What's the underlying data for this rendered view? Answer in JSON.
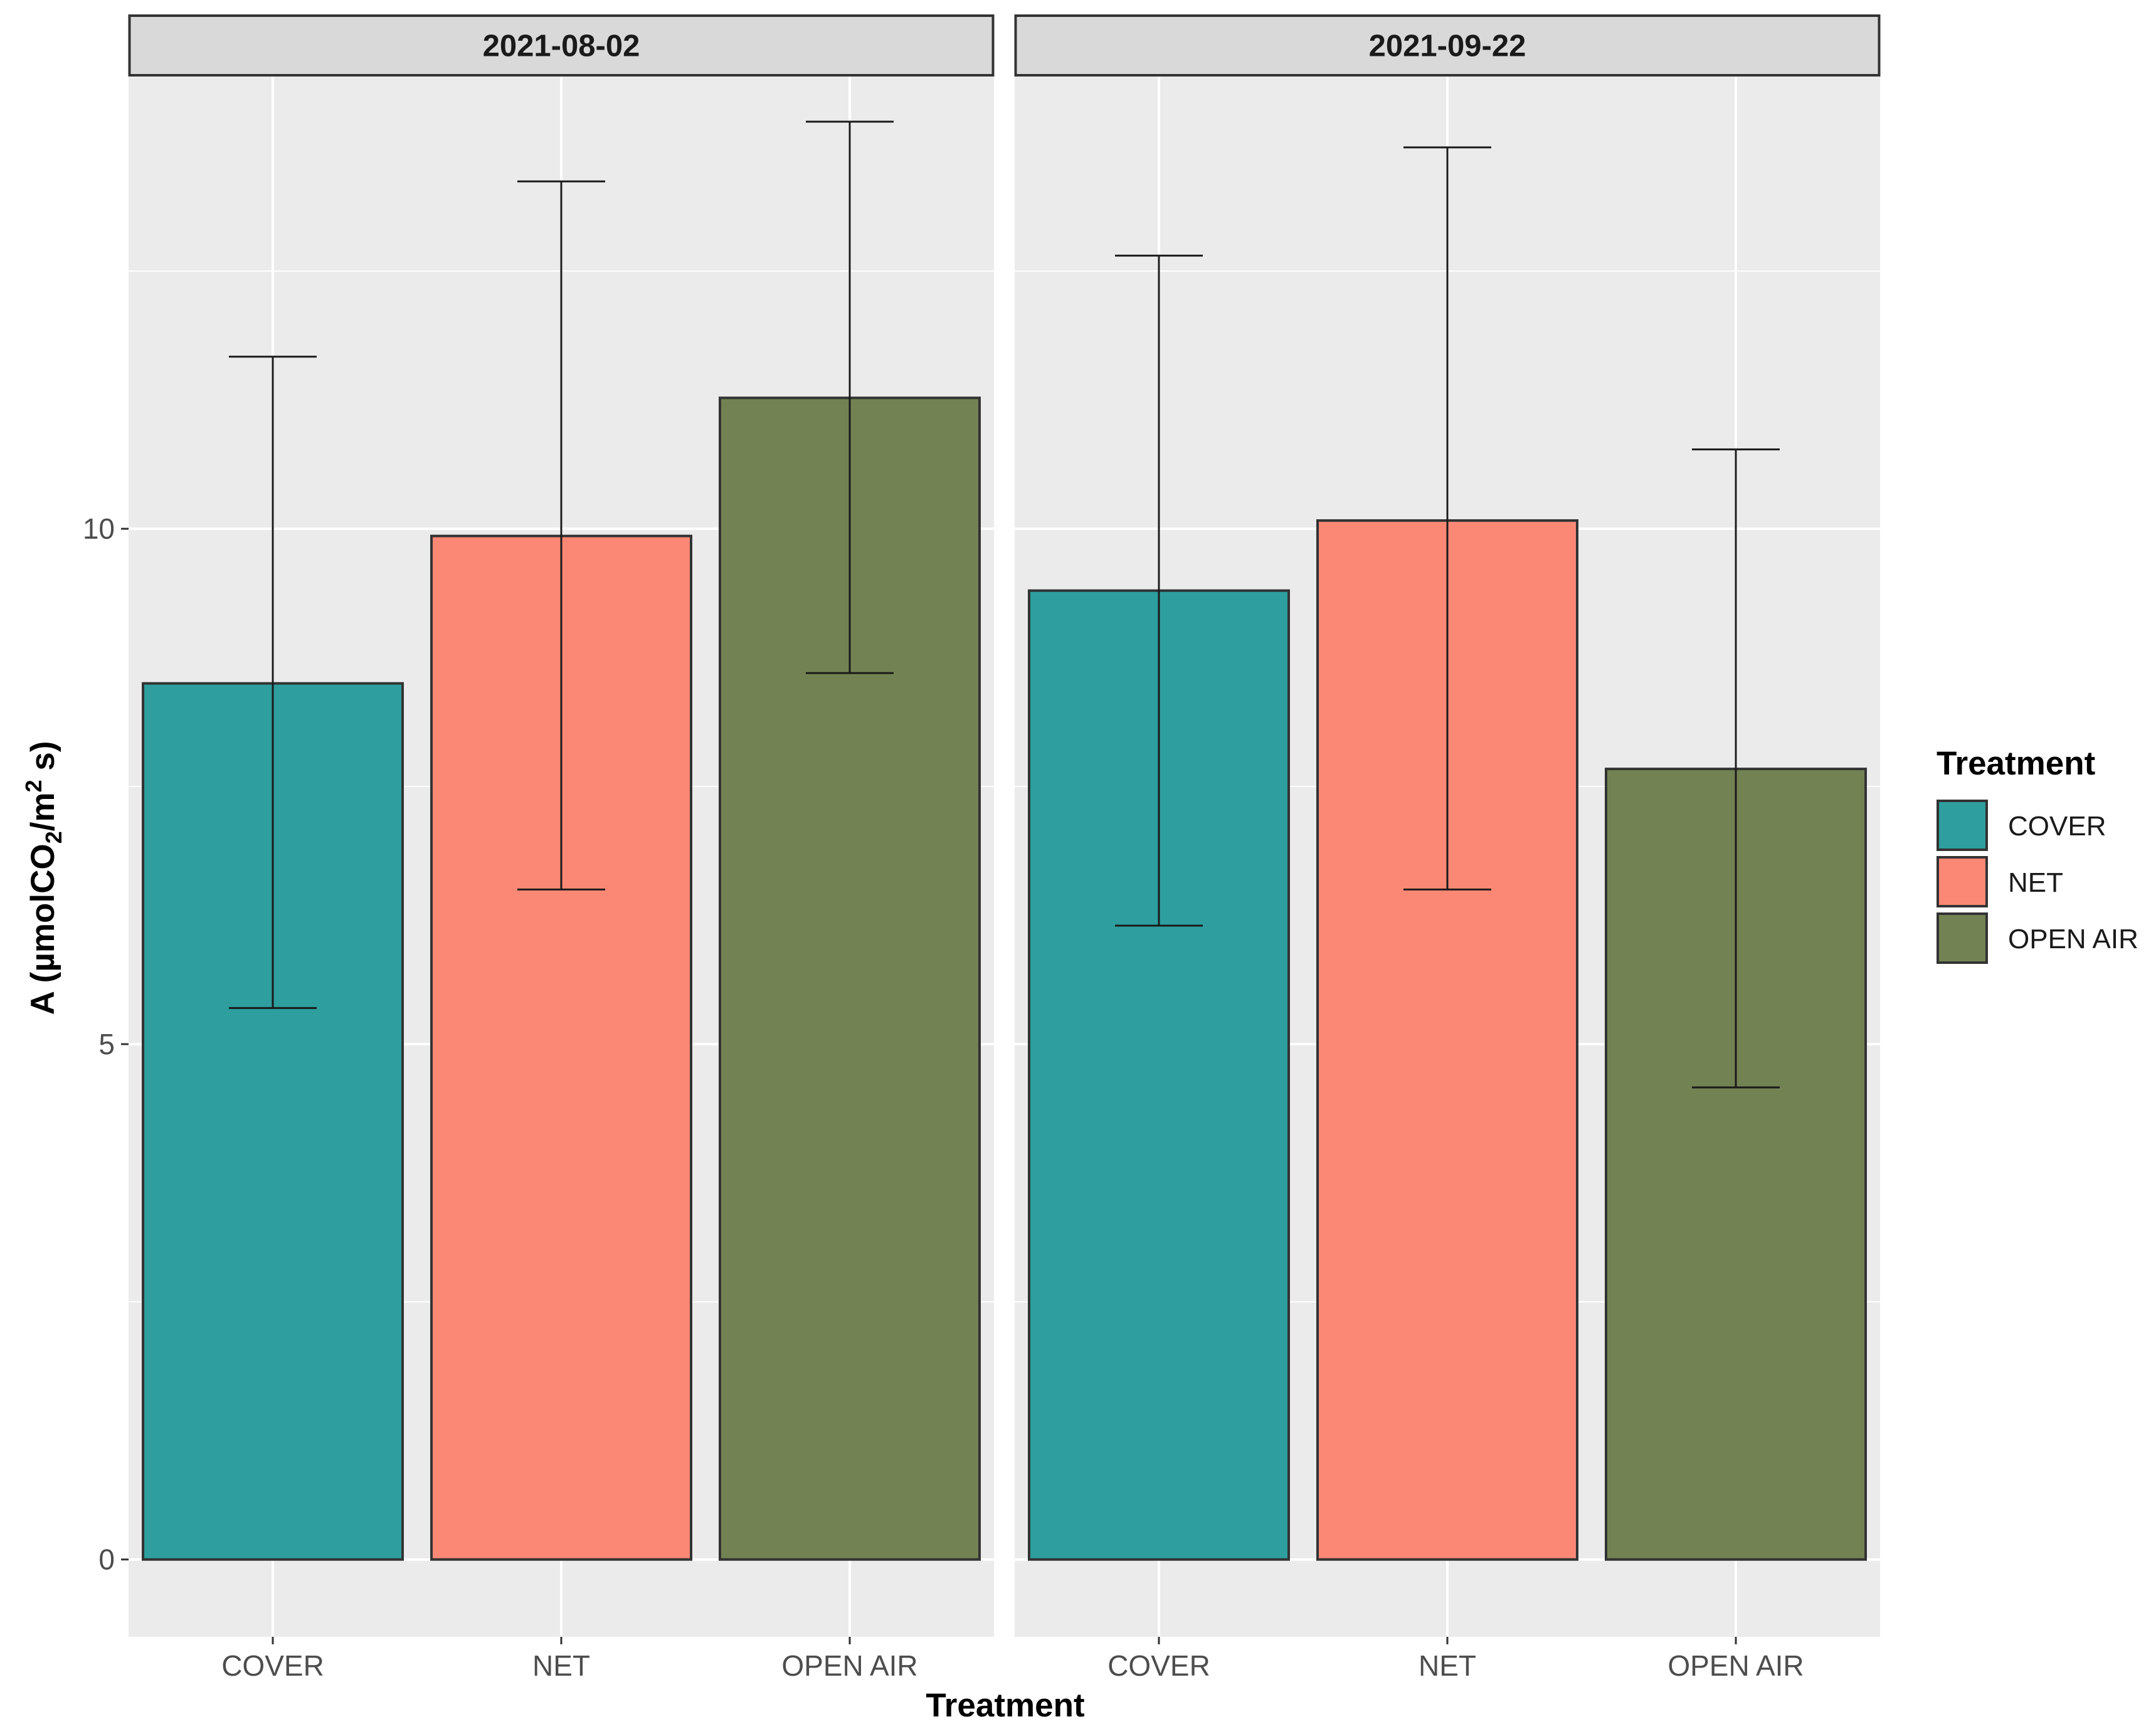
{
  "chart_data": {
    "type": "bar",
    "x_title": "Treatment",
    "y_title_parts": {
      "prefix": "A (µmolCO",
      "sub": "2",
      "middle": "/m",
      "sup": "2",
      "suffix": " s)"
    },
    "ylim": [
      -0.75,
      14.4
    ],
    "y_ticks": [
      0,
      5,
      10
    ],
    "y_tick_labels": [
      "0",
      "5",
      "10"
    ],
    "categories": [
      "COVER",
      "NET",
      "OPEN AIR"
    ],
    "panels": [
      {
        "label": "2021-08-02",
        "values": [
          8.5,
          9.93,
          11.27
        ],
        "error_low": [
          5.35,
          6.5,
          8.6
        ],
        "error_high": [
          11.67,
          13.37,
          13.95
        ]
      },
      {
        "label": "2021-09-22",
        "values": [
          9.4,
          10.08,
          7.67
        ],
        "error_low": [
          6.15,
          6.5,
          4.58
        ],
        "error_high": [
          12.65,
          13.7,
          10.77
        ]
      }
    ],
    "legend": {
      "title": "Treatment",
      "position": "right",
      "items": [
        {
          "label": "COVER",
          "color": "#2e9e9e"
        },
        {
          "label": "NET",
          "color": "#fa8875"
        },
        {
          "label": "OPEN AIR",
          "color": "#738252"
        }
      ]
    },
    "colors": {
      "panel_bg": "#ebebeb",
      "grid": "#ffffff",
      "strip_bg": "#d9d9d9",
      "bar_outline": "#333333",
      "error_bar": "#1a1a1a"
    }
  }
}
